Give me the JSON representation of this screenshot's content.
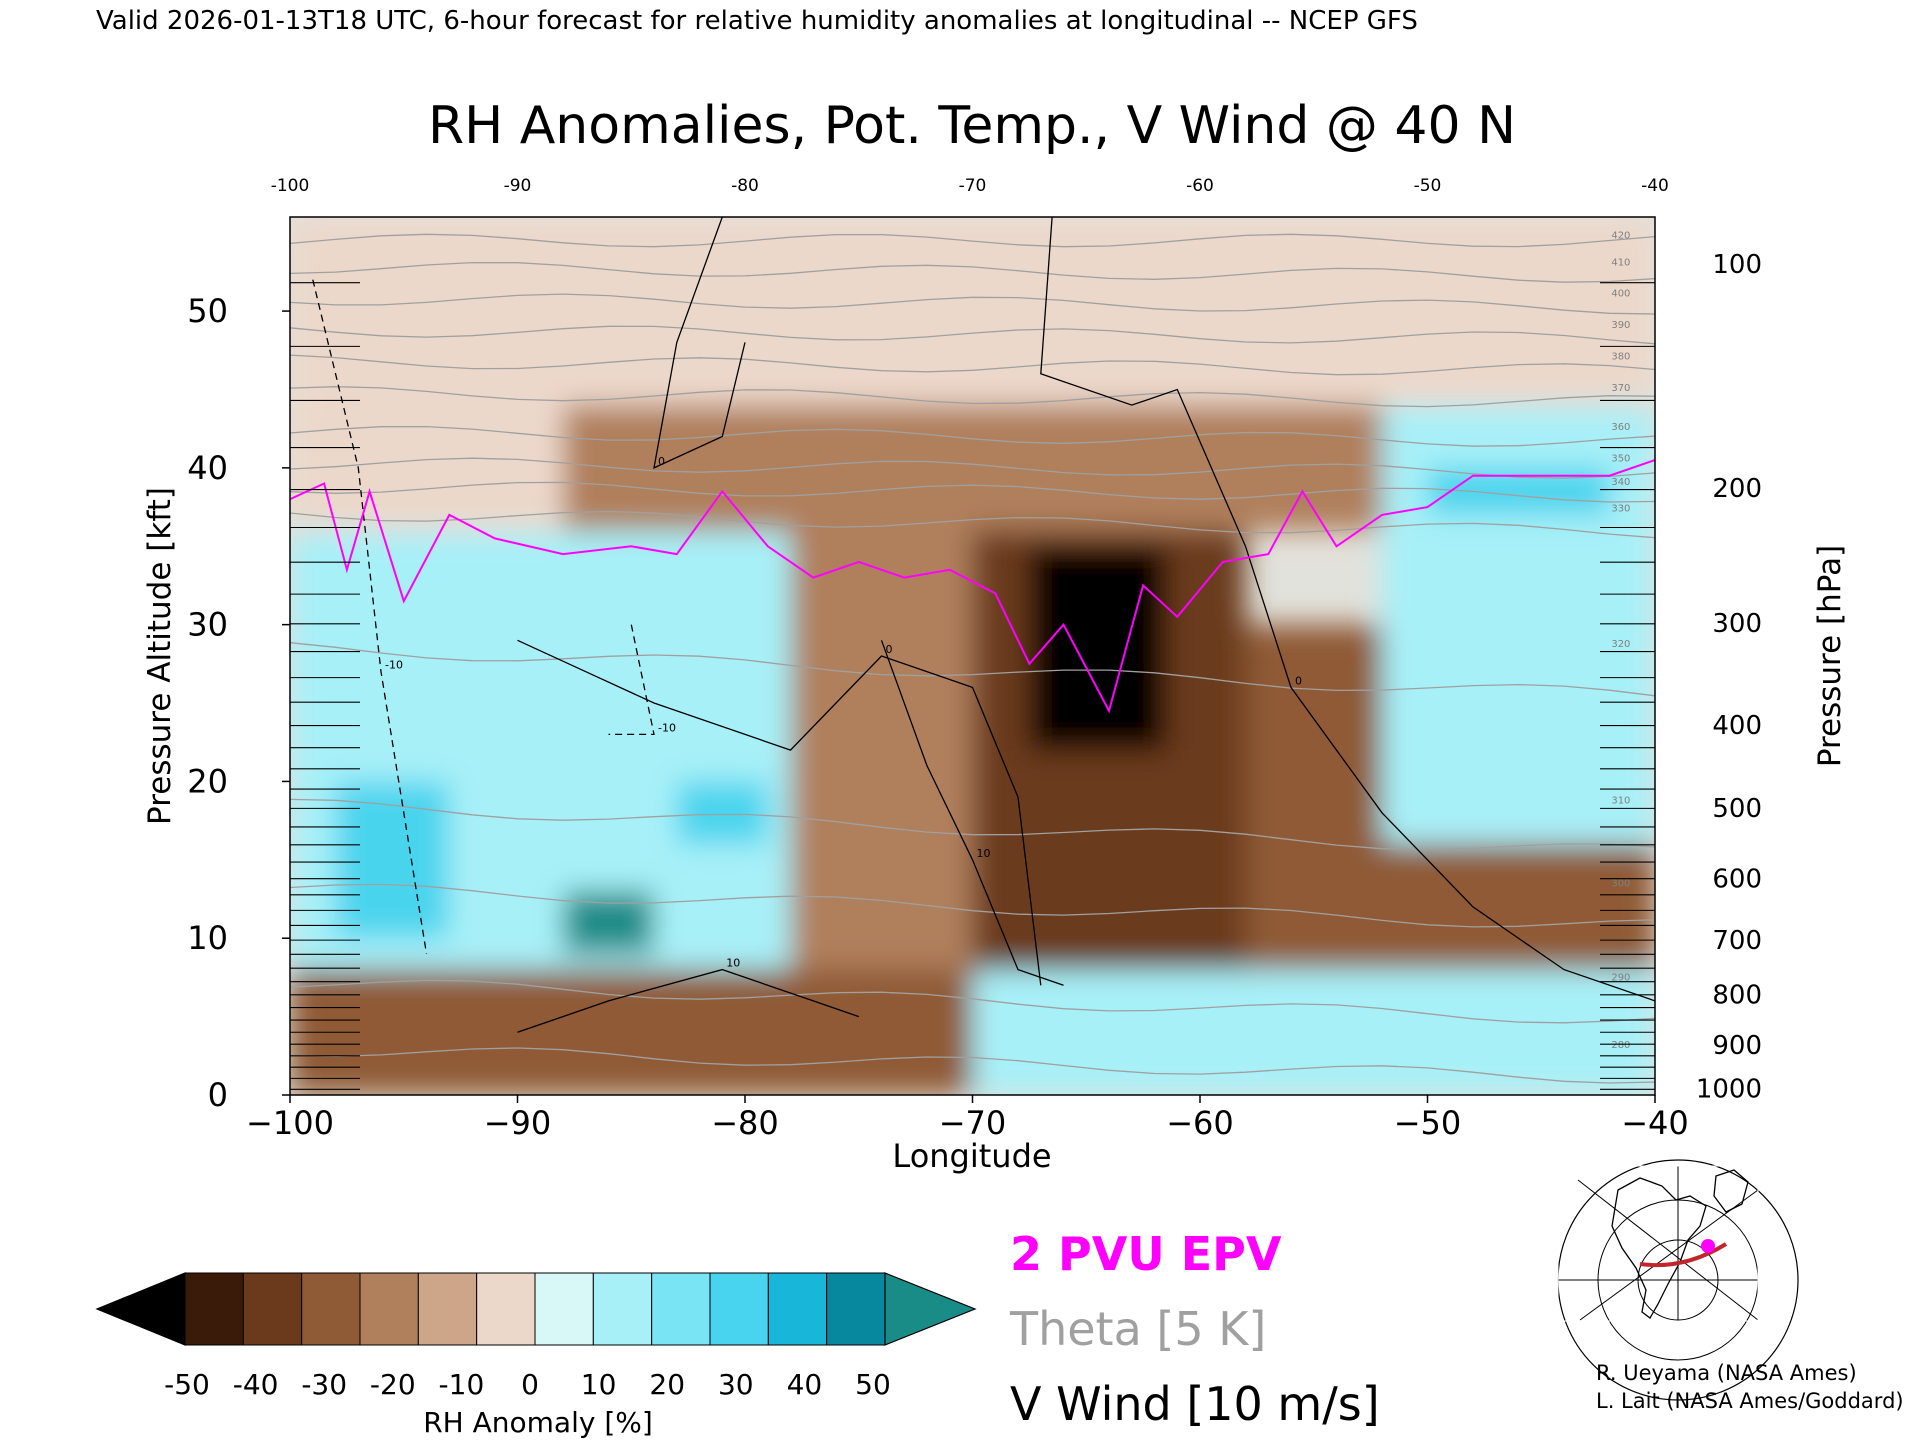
{
  "header": {
    "valid_line": "Valid 2026-01-13T18 UTC, 6-hour forecast for relative humidity anomalies at longitudinal -- NCEP GFS",
    "title": "RH Anomalies, Pot. Temp., V Wind @ 40 N"
  },
  "legend": {
    "epv_label": "2 PVU EPV",
    "theta_label": "Theta [5 K]",
    "wind_label": "V Wind [10 m/s]",
    "epv_color": "#ff00ff",
    "theta_color": "#a0a0a0",
    "wind_color": "#000000"
  },
  "colorbar": {
    "label": "RH Anomaly [%]",
    "ticks": [
      "-50",
      "-40",
      "-30",
      "-20",
      "-10",
      "0",
      "10",
      "20",
      "30",
      "40",
      "50"
    ],
    "colors": [
      "#000000",
      "#3a1a08",
      "#6b3a1c",
      "#8f5a36",
      "#b07f5c",
      "#cda589",
      "#ecd8cb",
      "#d8f8f8",
      "#a8f0f8",
      "#78e4f4",
      "#48d4ee",
      "#18b6d8",
      "#08889e",
      "#1a8c88"
    ]
  },
  "credits": {
    "line1": "R. Ueyama (NASA Ames)",
    "line2": "L. Lait (NASA Ames/Goddard)"
  },
  "chart_data": {
    "type": "heatmap",
    "title": "RH Anomalies, Pot. Temp., V Wind @ 40 N",
    "xlabel": "Longitude",
    "ylabel": "Pressure Altitude [kft]",
    "y2label": "Pressure [hPa]",
    "xlim": [
      -100,
      -40
    ],
    "ylim": [
      0,
      56
    ],
    "x_ticks": [
      -100,
      -90,
      -80,
      -70,
      -60,
      -50,
      -40
    ],
    "x_tick_labels": [
      "−100",
      "−90",
      "−80",
      "−70",
      "−60",
      "−50",
      "−40"
    ],
    "top_tick_labels": [
      "-100",
      "-90",
      "-80",
      "-70",
      "-60",
      "-50",
      "-40"
    ],
    "y_ticks": [
      0,
      10,
      20,
      30,
      40,
      50
    ],
    "pressure_ticks": [
      {
        "label": "100",
        "kft": 53.0
      },
      {
        "label": "200",
        "kft": 38.7
      },
      {
        "label": "300",
        "kft": 30.1
      },
      {
        "label": "400",
        "kft": 23.6
      },
      {
        "label": "500",
        "kft": 18.3
      },
      {
        "label": "600",
        "kft": 13.8
      },
      {
        "label": "700",
        "kft": 9.9
      },
      {
        "label": "800",
        "kft": 6.4
      },
      {
        "label": "900",
        "kft": 3.2
      },
      {
        "label": "1000",
        "kft": 0.4
      }
    ],
    "rh_anomaly_regions": [
      {
        "lon": [
          -100,
          -40
        ],
        "kft": [
          44,
          56
        ],
        "value": 0
      },
      {
        "lon": [
          -100,
          -88
        ],
        "kft": [
          36,
          44
        ],
        "value": 5
      },
      {
        "lon": [
          -88,
          -52
        ],
        "kft": [
          36,
          44
        ],
        "value": -15
      },
      {
        "lon": [
          -52,
          -40
        ],
        "kft": [
          36,
          44
        ],
        "value": 25
      },
      {
        "lon": [
          -100,
          -78
        ],
        "kft": [
          8,
          36
        ],
        "value": 25
      },
      {
        "lon": [
          -78,
          -70
        ],
        "kft": [
          8,
          36
        ],
        "value": -20
      },
      {
        "lon": [
          -70,
          -58
        ],
        "kft": [
          6,
          36
        ],
        "value": -35
      },
      {
        "lon": [
          -58,
          -52
        ],
        "kft": [
          8,
          30
        ],
        "value": -25
      },
      {
        "lon": [
          -52,
          -40
        ],
        "kft": [
          16,
          36
        ],
        "value": 25
      },
      {
        "lon": [
          -52,
          -40
        ],
        "kft": [
          8,
          16
        ],
        "value": -30
      },
      {
        "lon": [
          -100,
          -70
        ],
        "kft": [
          0,
          8
        ],
        "value": -25
      },
      {
        "lon": [
          -70,
          -40
        ],
        "kft": [
          0,
          8
        ],
        "value": 20
      },
      {
        "lon": [
          -98,
          -93
        ],
        "kft": [
          10,
          20
        ],
        "value": 45
      },
      {
        "lon": [
          -88,
          -84
        ],
        "kft": [
          9,
          13
        ],
        "value": 50
      },
      {
        "lon": [
          -83,
          -79
        ],
        "kft": [
          16,
          20
        ],
        "value": 45
      },
      {
        "lon": [
          -67.5,
          -61.5
        ],
        "kft": [
          22,
          35
        ],
        "value": -50
      },
      {
        "lon": [
          -50,
          -42
        ],
        "kft": [
          37,
          40
        ],
        "value": 45
      }
    ],
    "epv_2pvu_line": [
      {
        "lon": -100,
        "kft": 38.0
      },
      {
        "lon": -98.5,
        "kft": 39.0
      },
      {
        "lon": -97.5,
        "kft": 33.5
      },
      {
        "lon": -96.5,
        "kft": 38.5
      },
      {
        "lon": -95,
        "kft": 31.5
      },
      {
        "lon": -93,
        "kft": 37.0
      },
      {
        "lon": -91,
        "kft": 35.5
      },
      {
        "lon": -88,
        "kft": 34.5
      },
      {
        "lon": -85,
        "kft": 35.0
      },
      {
        "lon": -83,
        "kft": 34.5
      },
      {
        "lon": -81,
        "kft": 38.5
      },
      {
        "lon": -79,
        "kft": 35.0
      },
      {
        "lon": -77,
        "kft": 33.0
      },
      {
        "lon": -75,
        "kft": 34.0
      },
      {
        "lon": -73,
        "kft": 33.0
      },
      {
        "lon": -71,
        "kft": 33.5
      },
      {
        "lon": -69,
        "kft": 32.0
      },
      {
        "lon": -67.5,
        "kft": 27.5
      },
      {
        "lon": -66,
        "kft": 30.0
      },
      {
        "lon": -64,
        "kft": 24.5
      },
      {
        "lon": -62.5,
        "kft": 32.5
      },
      {
        "lon": -61,
        "kft": 30.5
      },
      {
        "lon": -59,
        "kft": 34.0
      },
      {
        "lon": -57,
        "kft": 34.5
      },
      {
        "lon": -55.5,
        "kft": 38.5
      },
      {
        "lon": -54,
        "kft": 35.0
      },
      {
        "lon": -52,
        "kft": 37.0
      },
      {
        "lon": -50,
        "kft": 37.5
      },
      {
        "lon": -48,
        "kft": 39.5
      },
      {
        "lon": -45,
        "kft": 39.5
      },
      {
        "lon": -42,
        "kft": 39.5
      },
      {
        "lon": -40,
        "kft": 40.5
      }
    ],
    "theta_contours": [
      {
        "label": "280",
        "base_kft": 2.0,
        "slope": 0.03
      },
      {
        "label": "290",
        "base_kft": 6.0,
        "slope": 0.04
      },
      {
        "label": "300",
        "base_kft": 12.0,
        "slope": 0.04
      },
      {
        "label": "310",
        "base_kft": 17.0,
        "slope": 0.05
      },
      {
        "label": "320",
        "base_kft": 27.0,
        "slope": 0.05
      },
      {
        "label": "330",
        "base_kft": 36.5,
        "slope": 0.02
      },
      {
        "label": "340",
        "base_kft": 38.5,
        "slope": 0.01
      },
      {
        "label": "350",
        "base_kft": 40.0,
        "slope": 0.01
      },
      {
        "label": "360",
        "base_kft": 42.0,
        "slope": 0.01
      },
      {
        "label": "370",
        "base_kft": 44.5,
        "slope": 0.01
      },
      {
        "label": "380",
        "base_kft": 46.5,
        "slope": 0.01
      },
      {
        "label": "390",
        "base_kft": 48.5,
        "slope": 0.01
      },
      {
        "label": "400",
        "base_kft": 50.5,
        "slope": 0.01
      },
      {
        "label": "410",
        "base_kft": 52.5,
        "slope": 0.01
      },
      {
        "label": "420",
        "base_kft": 54.5,
        "slope": 0.0
      }
    ],
    "vwind_contours": [
      {
        "label": "0",
        "points": [
          [
            -66.5,
            56
          ],
          [
            -67,
            46
          ],
          [
            -63,
            44
          ],
          [
            -61,
            45
          ],
          [
            -58,
            35
          ],
          [
            -56,
            26
          ],
          [
            -52,
            18
          ],
          [
            -48,
            12
          ],
          [
            -44,
            8
          ],
          [
            -40,
            6
          ]
        ]
      },
      {
        "label": "0",
        "points": [
          [
            -90,
            29
          ],
          [
            -87,
            27
          ],
          [
            -84,
            25
          ],
          [
            -78,
            22
          ],
          [
            -74,
            28
          ],
          [
            -70,
            26
          ],
          [
            -68,
            19
          ],
          [
            -67,
            7
          ]
        ]
      },
      {
        "label": "0",
        "points": [
          [
            -81,
            56
          ],
          [
            -83,
            48
          ],
          [
            -84,
            40
          ],
          [
            -81,
            42
          ],
          [
            -80,
            48
          ]
        ]
      },
      {
        "label": "10",
        "points": [
          [
            -74,
            29
          ],
          [
            -72,
            21
          ],
          [
            -70,
            15
          ],
          [
            -68,
            8
          ],
          [
            -66,
            7
          ]
        ]
      },
      {
        "label": "-10",
        "points": [
          [
            -99,
            52
          ],
          [
            -97,
            40
          ],
          [
            -96,
            27
          ],
          [
            -95,
            18
          ],
          [
            -94,
            9
          ]
        ]
      },
      {
        "label": "10",
        "points": [
          [
            -90,
            4
          ],
          [
            -86,
            6
          ],
          [
            -81,
            8
          ],
          [
            -77,
            6
          ],
          [
            -75,
            5
          ]
        ]
      },
      {
        "label": "-10",
        "points": [
          [
            -85,
            30
          ],
          [
            -84,
            23
          ],
          [
            -86,
            23
          ]
        ]
      }
    ]
  }
}
